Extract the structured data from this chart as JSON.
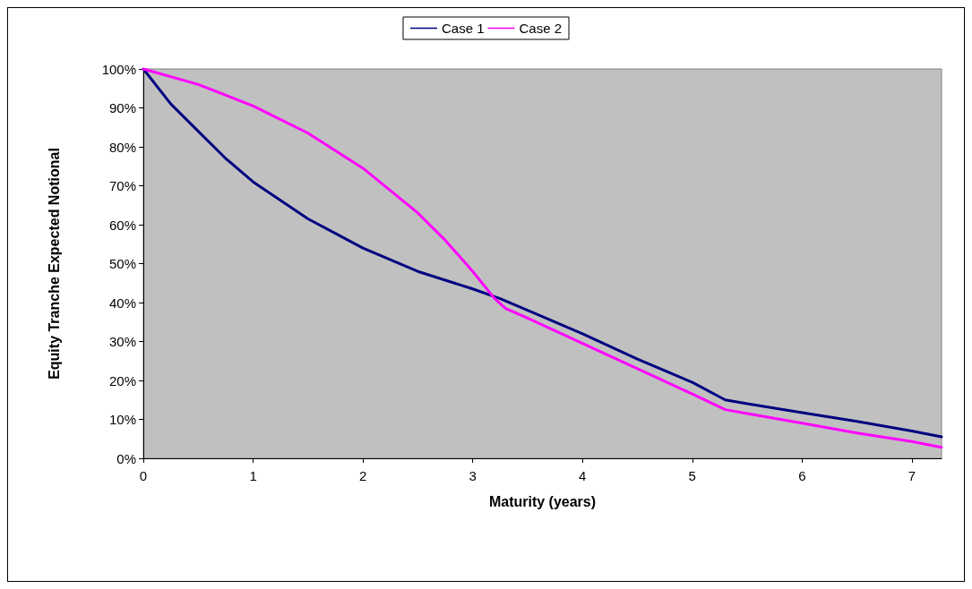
{
  "chart_data": {
    "type": "line",
    "xlabel": "Maturity (years)",
    "ylabel": "Equity Tranche Expected Notional",
    "series": [
      {
        "name": "Case 1",
        "color": "#000080",
        "x": [
          0,
          0.25,
          0.5,
          0.75,
          1,
          1.5,
          2,
          2.5,
          3,
          3.25,
          3.5,
          4,
          4.5,
          5,
          5.3,
          5.5,
          6,
          6.5,
          7,
          7.27
        ],
        "values": [
          100,
          91,
          84,
          77,
          71,
          61.5,
          54,
          48,
          43.5,
          41,
          38,
          32,
          25.5,
          19.5,
          15,
          14,
          11.7,
          9.5,
          7,
          5.5
        ]
      },
      {
        "name": "Case 2",
        "color": "#ff00ff",
        "x": [
          0,
          0.5,
          1,
          1.5,
          2,
          2.5,
          2.75,
          3,
          3.2,
          3.3,
          3.5,
          4,
          4.5,
          5,
          5.3,
          5.5,
          6,
          6.5,
          7,
          7.27
        ],
        "values": [
          100,
          96,
          90.5,
          83.5,
          74.5,
          63,
          56,
          48,
          41,
          38.5,
          36,
          29.5,
          23,
          16.5,
          12.5,
          11.5,
          9,
          6.5,
          4.3,
          2.8
        ]
      }
    ],
    "xlim": [
      0,
      7.27
    ],
    "xticks": [
      0,
      1,
      2,
      3,
      4,
      5,
      6,
      7
    ],
    "ylim": [
      0,
      100
    ],
    "yticks": [
      {
        "value": 0,
        "label": "0%"
      },
      {
        "value": 10,
        "label": "10%"
      },
      {
        "value": 20,
        "label": "20%"
      },
      {
        "value": 30,
        "label": "30%"
      },
      {
        "value": 40,
        "label": "40%"
      },
      {
        "value": 50,
        "label": "50%"
      },
      {
        "value": 60,
        "label": "60%"
      },
      {
        "value": 70,
        "label": "70%"
      },
      {
        "value": 80,
        "label": "80%"
      },
      {
        "value": 90,
        "label": "90%"
      },
      {
        "value": 100,
        "label": "100%"
      }
    ],
    "grid": false,
    "legend": "top",
    "marker": "none",
    "line_style": "solid"
  }
}
